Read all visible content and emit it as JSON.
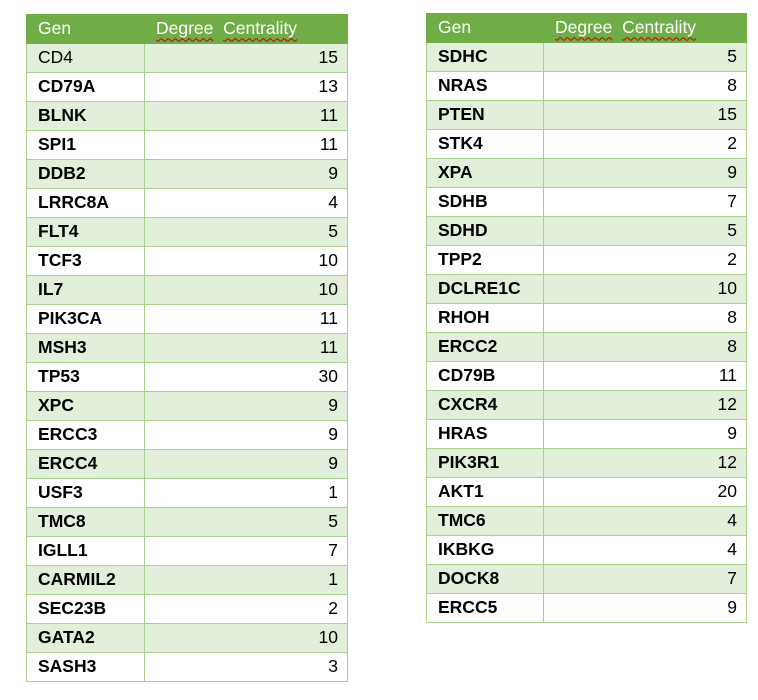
{
  "left_table": {
    "header": {
      "gen": "Gen",
      "degree_word": "Degree",
      "centrality_word": "Centrality"
    },
    "rows": [
      {
        "gen": "CD4",
        "value": "15"
      },
      {
        "gen": "CD79A",
        "value": "13"
      },
      {
        "gen": "BLNK",
        "value": "11"
      },
      {
        "gen": "SPI1",
        "value": "11"
      },
      {
        "gen": "DDB2",
        "value": "9"
      },
      {
        "gen": "LRRC8A",
        "value": "4"
      },
      {
        "gen": "FLT4",
        "value": "5"
      },
      {
        "gen": "TCF3",
        "value": "10"
      },
      {
        "gen": "IL7",
        "value": "10"
      },
      {
        "gen": "PIK3CA",
        "value": "11"
      },
      {
        "gen": "MSH3",
        "value": "11"
      },
      {
        "gen": "TP53",
        "value": "30"
      },
      {
        "gen": "XPC",
        "value": "9"
      },
      {
        "gen": "ERCC3",
        "value": "9"
      },
      {
        "gen": "ERCC4",
        "value": "9"
      },
      {
        "gen": "USF3",
        "value": "1"
      },
      {
        "gen": "TMC8",
        "value": "5"
      },
      {
        "gen": "IGLL1",
        "value": "7"
      },
      {
        "gen": "CARMIL2",
        "value": "1"
      },
      {
        "gen": "SEC23B",
        "value": "2"
      },
      {
        "gen": "GATA2",
        "value": "10"
      },
      {
        "gen": "SASH3",
        "value": "3"
      }
    ]
  },
  "right_table": {
    "header": {
      "gen": "Gen",
      "degree_word": "Degree",
      "centrality_word": "Centrality"
    },
    "rows": [
      {
        "gen": "SDHC",
        "value": "5"
      },
      {
        "gen": "NRAS",
        "value": "8"
      },
      {
        "gen": "PTEN",
        "value": "15"
      },
      {
        "gen": "STK4",
        "value": "2"
      },
      {
        "gen": "XPA",
        "value": "9"
      },
      {
        "gen": "SDHB",
        "value": "7"
      },
      {
        "gen": "SDHD",
        "value": "5"
      },
      {
        "gen": "TPP2",
        "value": "2"
      },
      {
        "gen": "DCLRE1C",
        "value": "10"
      },
      {
        "gen": "RHOH",
        "value": "8"
      },
      {
        "gen": "ERCC2",
        "value": "8"
      },
      {
        "gen": "CD79B",
        "value": "11"
      },
      {
        "gen": "CXCR4",
        "value": "12"
      },
      {
        "gen": "HRAS",
        "value": "9"
      },
      {
        "gen": "PIK3R1",
        "value": "12"
      },
      {
        "gen": "AKT1",
        "value": "20"
      },
      {
        "gen": "TMC6",
        "value": "4"
      },
      {
        "gen": "IKBKG",
        "value": "4"
      },
      {
        "gen": "DOCK8",
        "value": "7"
      },
      {
        "gen": "ERCC5",
        "value": "9"
      }
    ]
  },
  "colors": {
    "header_bg": "#70ad47",
    "band_bg": "#e2efda",
    "border": "#a9d08e",
    "spellcheck_squiggle": "#c00000"
  }
}
